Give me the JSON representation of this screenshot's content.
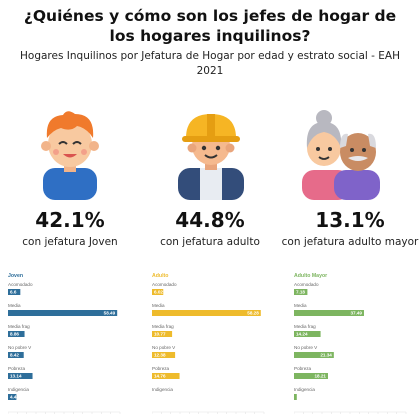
{
  "header": {
    "title": "¿Quiénes y cómo son los jefes de hogar de los hogares inquilinos?",
    "subtitle": "Hogares Inquilinos por Jefatura de Hogar por edad y estrato social - EAH 2021"
  },
  "groups": [
    {
      "icon": "young-boy-icon",
      "pct": "42.1%",
      "label": "con jefatura Joven"
    },
    {
      "icon": "construction-worker-icon",
      "pct": "44.8%",
      "label": "con jefatura adulto"
    },
    {
      "icon": "elderly-couple-icon",
      "pct": "13.1%",
      "label": "con jefatura adulto mayor"
    }
  ],
  "colors": {
    "joven": "#2e6e9a",
    "adulto": "#eebb2c",
    "mayor": "#7db560"
  },
  "chart_data": [
    {
      "type": "bar",
      "title": "Joven",
      "categories": [
        "Acomodado",
        "Media",
        "Media frag",
        "No pobre V",
        "Pobreza",
        "Indigencia"
      ],
      "values": [
        6.6,
        58.49,
        8.86,
        8.42,
        13.14,
        4.49
      ],
      "value_labels": [
        "6.6",
        "58.49",
        "8.86",
        "8.42",
        "13.14",
        "4.49"
      ],
      "xlim": [
        0,
        60
      ]
    },
    {
      "type": "bar",
      "title": "Adulto",
      "categories": [
        "Acomodado",
        "Media",
        "Media frag",
        "No pobre V",
        "Pobreza",
        "Indigencia"
      ],
      "values": [
        6.02,
        58.28,
        10.77,
        12.38,
        14.76,
        0
      ],
      "value_labels": [
        "6.02",
        "58.28",
        "10.77",
        "12.38",
        "14.76",
        ""
      ],
      "xlim": [
        0,
        60
      ]
    },
    {
      "type": "bar",
      "title": "Adulto Mayor",
      "categories": [
        "Acomodado",
        "Media",
        "Media frag",
        "No pobre V",
        "Pobreza",
        "Indigencia"
      ],
      "values": [
        7.18,
        37.49,
        14.24,
        21.34,
        18.21,
        1.5
      ],
      "value_labels": [
        "7.18",
        "37.49",
        "14.24",
        "21.34",
        "18.21",
        ""
      ],
      "xlim": [
        0,
        60
      ]
    }
  ]
}
